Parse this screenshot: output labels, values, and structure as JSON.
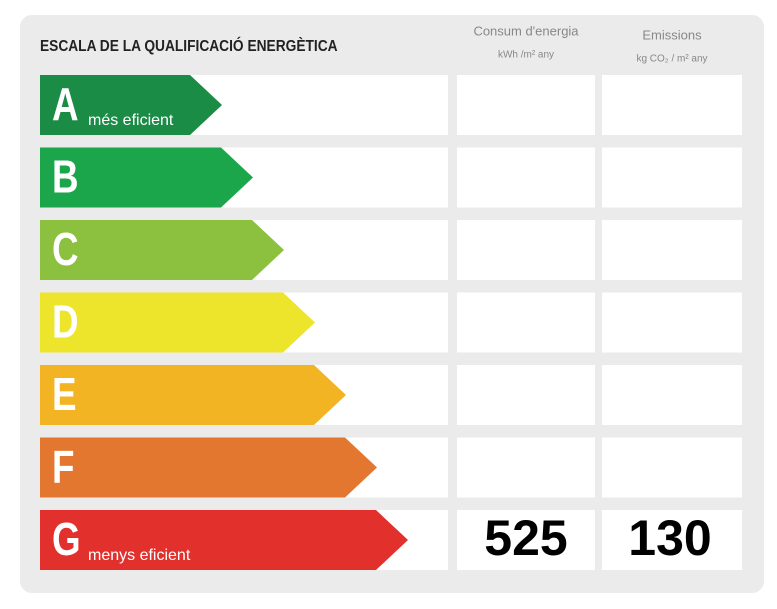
{
  "header": {
    "title": "ESCALA DE LA QUALIFICACIÓ ENERGÈTICA",
    "columns": [
      {
        "name": "Consum d'energia",
        "unit": "kWh /m² any"
      },
      {
        "name": "Emissions",
        "unit": "kg CO₂ / m² any"
      }
    ]
  },
  "rows": [
    {
      "letter": "A",
      "note": "més eficient",
      "color": "#1a8c45"
    },
    {
      "letter": "B",
      "color": "#1ba64b"
    },
    {
      "letter": "C",
      "color": "#8cc03f"
    },
    {
      "letter": "D",
      "color": "#ece52b"
    },
    {
      "letter": "E",
      "color": "#f2b423"
    },
    {
      "letter": "F",
      "color": "#e3772f"
    },
    {
      "letter": "G",
      "note": "menys eficient",
      "color": "#e2302c",
      "consumption": 525,
      "emissions": 130
    }
  ]
}
